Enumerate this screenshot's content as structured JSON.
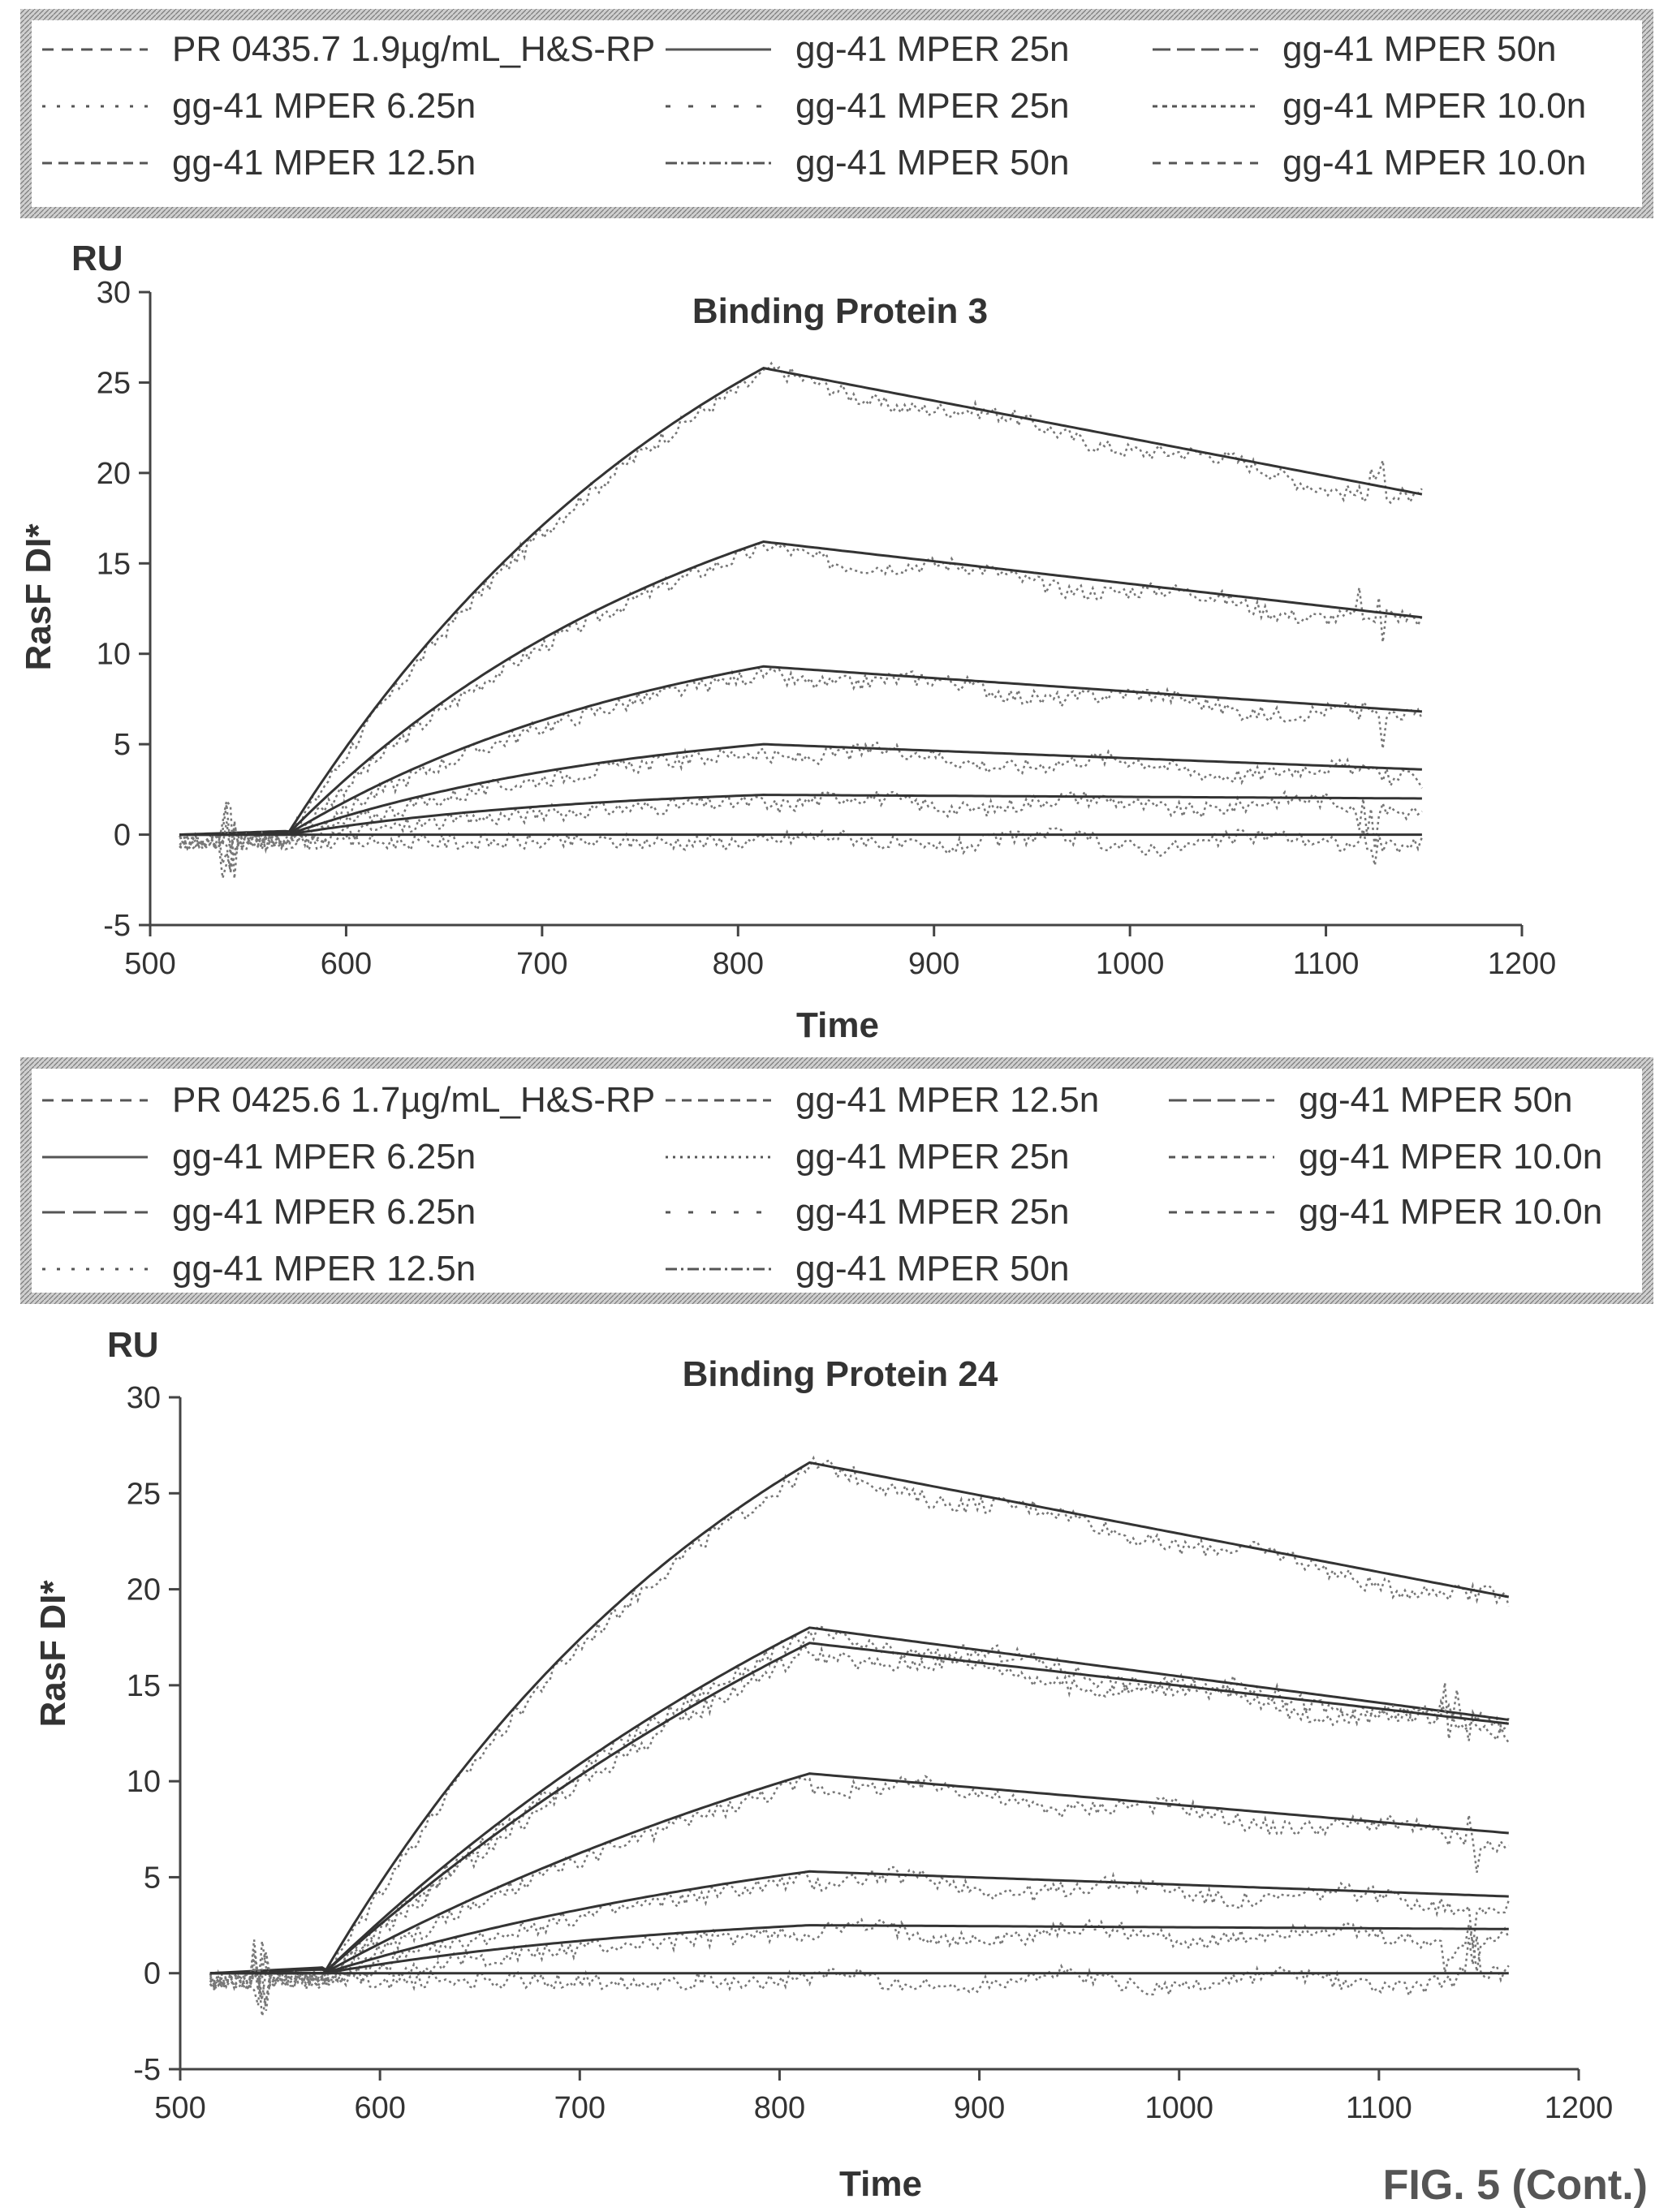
{
  "figure_label": "FIG. 5 (Cont.)",
  "chart_data": [
    {
      "type": "line",
      "title": "Binding Protein 3",
      "xlabel": "Time",
      "ylabel": "RasF DI*",
      "yunit": "RU",
      "xlim": [
        500,
        1200
      ],
      "ylim": [
        -5,
        30
      ],
      "xticks": [
        500,
        600,
        700,
        800,
        900,
        1000,
        1100,
        1200
      ],
      "yticks": [
        -5,
        0,
        5,
        10,
        15,
        20,
        25,
        30
      ],
      "grid": false,
      "legend_position": "top",
      "legend": [
        {
          "name": "PR 0435.7 1.9µg/mL_H&S-RP",
          "dash": "14 10"
        },
        {
          "name": "gg-41 MPER 25n",
          "dash": ""
        },
        {
          "name": "gg-41 MPER 50n",
          "dash": "22 8"
        },
        {
          "name": "gg-41 MPER 6.25n",
          "dash": "4 14"
        },
        {
          "name": "gg-41 MPER 25n",
          "dash": "6 22"
        },
        {
          "name": "gg-41 MPER 10.0n",
          "dash": "6 6"
        },
        {
          "name": "gg-41 MPER 12.5n",
          "dash": "12 8"
        },
        {
          "name": "gg-41 MPER 50n",
          "dash": "14 5 3 5"
        },
        {
          "name": "gg-41 MPER 10.0n",
          "dash": "10 10"
        }
      ],
      "series": [
        {
          "baseline_end": 0.2,
          "plateau": 25.8,
          "end": 18.8,
          "tau": 230
        },
        {
          "baseline_end": 0.1,
          "plateau": 16.2,
          "end": 12.0,
          "tau": 220
        },
        {
          "baseline_end": 0.0,
          "plateau": 9.3,
          "end": 6.8,
          "tau": 200
        },
        {
          "baseline_end": 0.0,
          "plateau": 5.0,
          "end": 3.6,
          "tau": 180
        },
        {
          "baseline_end": 0.0,
          "plateau": 2.2,
          "end": 2.0,
          "tau": 160
        },
        {
          "baseline_end": 0.0,
          "plateau": 0.0,
          "end": 0.0,
          "tau": 100
        }
      ],
      "assoc_start": 570,
      "dissoc_start": 813,
      "end_time": 1150
    },
    {
      "type": "line",
      "title": "Binding Protein 24",
      "xlabel": "Time",
      "ylabel": "RasF DI*",
      "yunit": "RU",
      "xlim": [
        500,
        1200
      ],
      "ylim": [
        -5,
        30
      ],
      "xticks": [
        500,
        600,
        700,
        800,
        900,
        1000,
        1100,
        1200
      ],
      "yticks": [
        -5,
        0,
        5,
        10,
        15,
        20,
        25,
        30
      ],
      "grid": false,
      "legend_position": "top",
      "legend": [
        {
          "name": "PR 0425.6 1.7µg/mL_H&S-RP",
          "dash": "14 10"
        },
        {
          "name": "gg-41 MPER 12.5n",
          "dash": "12 8"
        },
        {
          "name": "gg-41 MPER 50n",
          "dash": "22 8"
        },
        {
          "name": "gg-41 MPER 6.25n",
          "dash": ""
        },
        {
          "name": "gg-41 MPER 25n",
          "dash": "3 6"
        },
        {
          "name": "gg-41 MPER 10.0n",
          "dash": "8 8"
        },
        {
          "name": "gg-41 MPER 6.25n",
          "dash": "28 10"
        },
        {
          "name": "gg-41 MPER 25n",
          "dash": "6 22"
        },
        {
          "name": "gg-41 MPER 10.0n",
          "dash": "10 10"
        },
        {
          "name": "gg-41 MPER 12.5n",
          "dash": "4 14"
        },
        {
          "name": "gg-41 MPER 50n",
          "dash": "14 5 3 5"
        }
      ],
      "series": [
        {
          "baseline_end": 0.3,
          "plateau": 26.6,
          "end": 19.6,
          "tau": 230
        },
        {
          "baseline_end": 0.2,
          "plateau": 18.0,
          "end": 13.2,
          "tau": 380
        },
        {
          "baseline_end": 0.2,
          "plateau": 17.2,
          "end": 13.0,
          "tau": 420
        },
        {
          "baseline_end": 0.0,
          "plateau": 10.4,
          "end": 7.3,
          "tau": 400
        },
        {
          "baseline_end": 0.0,
          "plateau": 5.3,
          "end": 4.0,
          "tau": 300
        },
        {
          "baseline_end": 0.0,
          "plateau": 2.5,
          "end": 2.3,
          "tau": 200
        },
        {
          "baseline_end": 0.0,
          "plateau": 0.0,
          "end": 0.0,
          "tau": 100
        }
      ],
      "assoc_start": 572,
      "dissoc_start": 815,
      "end_time": 1165
    }
  ]
}
